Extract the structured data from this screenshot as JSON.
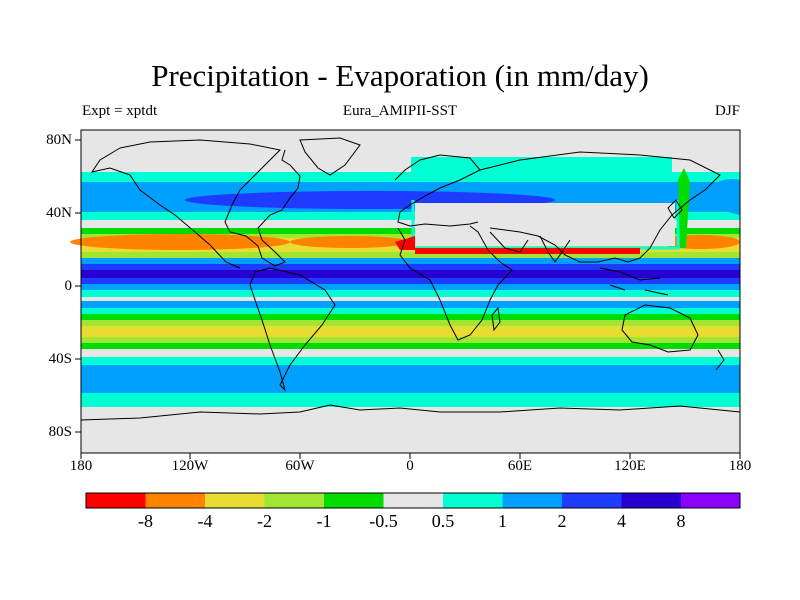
{
  "title": "Precipitation - Evaporation (in mm/day)",
  "subtitle_left": "Expt = xptdt",
  "subtitle_center": "Eura_AMIPII-SST",
  "subtitle_right": "DJF",
  "lat_ticks": [
    "80N",
    "40N",
    "0",
    "40S",
    "80S"
  ],
  "lon_ticks": [
    "180",
    "120W",
    "60W",
    "0",
    "60E",
    "120E",
    "180"
  ],
  "colors": {
    "land": "#e6e6e6",
    "lt_neg8": "#ff0000",
    "neg8_neg4": "#ff8200",
    "neg4_neg2": "#e6dc32",
    "neg2_neg1": "#a0e632",
    "neg1_neg05": "#00dc00",
    "neg05_05": "#e6e6e6",
    "p05_1": "#00ffd2",
    "p1_2": "#00a0ff",
    "p2_4": "#1e3cff",
    "p4_8": "#2800d2",
    "gt_8": "#8c00ff"
  },
  "colorbar": {
    "colors": [
      "#ff0000",
      "#ff8200",
      "#e6dc32",
      "#a0e632",
      "#00dc00",
      "#e6e6e6",
      "#00ffd2",
      "#00a0ff",
      "#1e3cff",
      "#2800d2",
      "#8c00ff"
    ],
    "labels": [
      "-8",
      "-4",
      "-2",
      "-1",
      "-0.5",
      "0.5",
      "1",
      "2",
      "4",
      "8"
    ]
  }
}
